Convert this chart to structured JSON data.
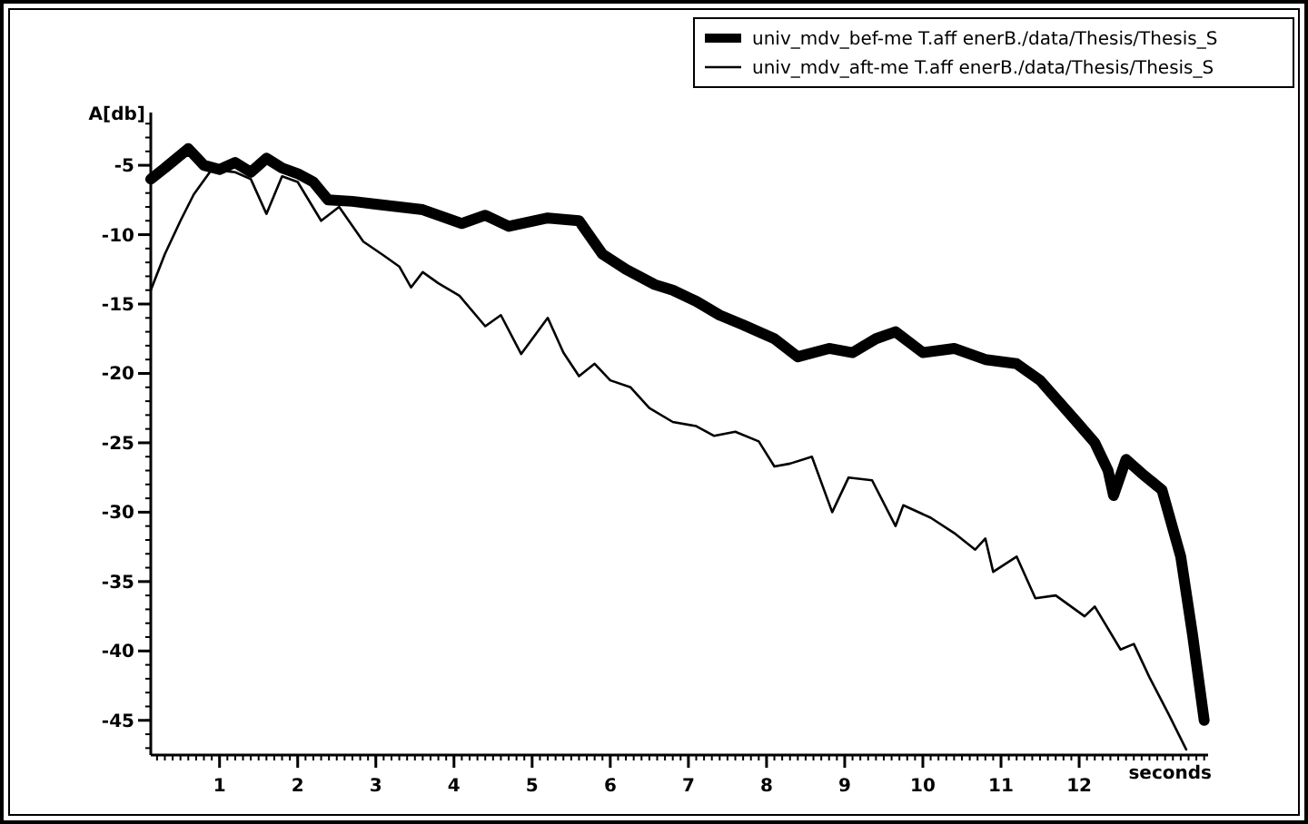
{
  "chart_data": {
    "type": "line",
    "ylabel": "A[db]",
    "xlabel": "seconds",
    "xlim": [
      0.12,
      13.65
    ],
    "ylim": [
      -47.5,
      -1.2
    ],
    "xticks": [
      1,
      2,
      3,
      4,
      5,
      6,
      7,
      8,
      9,
      10,
      11,
      12
    ],
    "yticks": [
      -5,
      -10,
      -15,
      -20,
      -25,
      -30,
      -35,
      -40,
      -45
    ],
    "grid": false,
    "legend": "top right",
    "marker": "none",
    "line_style": "solid",
    "series": [
      {
        "name": "univ_mdv_bef-me T.aff enerB./data/Thesis/Thesis_S",
        "color": "#000000",
        "x": [
          0.12,
          0.3,
          0.6,
          0.8,
          1.0,
          1.2,
          1.4,
          1.6,
          1.8,
          2.0,
          2.2,
          2.39,
          2.7,
          3.0,
          3.3,
          3.6,
          4.1,
          4.4,
          4.7,
          5.2,
          5.6,
          5.9,
          6.2,
          6.57,
          6.8,
          7.1,
          7.4,
          7.7,
          8.1,
          8.4,
          8.8,
          9.1,
          9.4,
          9.65,
          10.0,
          10.4,
          10.8,
          11.2,
          11.5,
          11.97,
          12.2,
          12.37,
          12.44,
          12.6,
          12.8,
          13.06,
          13.3,
          13.45,
          13.6
        ],
        "values": [
          -6.0,
          -5.2,
          -3.8,
          -5.0,
          -5.3,
          -4.8,
          -5.5,
          -4.5,
          -5.2,
          -5.6,
          -6.2,
          -7.5,
          -7.6,
          -7.8,
          -8.0,
          -8.2,
          -9.2,
          -8.6,
          -9.4,
          -8.8,
          -9.0,
          -11.4,
          -12.5,
          -13.6,
          -14.0,
          -14.8,
          -15.8,
          -16.5,
          -17.5,
          -18.8,
          -18.2,
          -18.5,
          -17.5,
          -17.0,
          -18.5,
          -18.2,
          -19.0,
          -19.3,
          -20.5,
          -23.5,
          -25.0,
          -27.0,
          -28.8,
          -26.2,
          -27.2,
          -28.4,
          -33.2,
          -38.8,
          -45.0
        ]
      },
      {
        "name": "univ_mdv_aft-me T.aff enerB./data/Thesis/Thesis_S",
        "color": "#000000",
        "x": [
          0.12,
          0.3,
          0.5,
          0.67,
          0.9,
          1.2,
          1.4,
          1.6,
          1.8,
          2.0,
          2.3,
          2.53,
          2.84,
          3.1,
          3.3,
          3.45,
          3.6,
          3.8,
          4.07,
          4.4,
          4.6,
          4.86,
          5.2,
          5.4,
          5.6,
          5.8,
          6.0,
          6.26,
          6.5,
          6.8,
          7.1,
          7.33,
          7.6,
          7.9,
          8.1,
          8.3,
          8.58,
          8.84,
          9.05,
          9.35,
          9.65,
          9.75,
          10.1,
          10.4,
          10.67,
          10.8,
          10.9,
          11.2,
          11.44,
          11.7,
          12.07,
          12.2,
          12.53,
          12.7,
          12.9,
          13.14,
          13.37
        ],
        "values": [
          -14.0,
          -11.4,
          -9.0,
          -7.1,
          -5.3,
          -5.5,
          -6.0,
          -8.5,
          -5.8,
          -6.2,
          -9.0,
          -8.0,
          -10.5,
          -11.5,
          -12.3,
          -13.8,
          -12.7,
          -13.5,
          -14.4,
          -16.6,
          -15.8,
          -18.6,
          -16.0,
          -18.5,
          -20.2,
          -19.3,
          -20.5,
          -21.0,
          -22.5,
          -23.5,
          -23.8,
          -24.5,
          -24.2,
          -24.9,
          -26.7,
          -26.5,
          -26.0,
          -30.0,
          -27.5,
          -27.7,
          -31.0,
          -29.5,
          -30.4,
          -31.5,
          -32.7,
          -31.9,
          -34.3,
          -33.2,
          -36.2,
          -36.0,
          -37.5,
          -36.8,
          -39.9,
          -39.5,
          -41.9,
          -44.5,
          -47.1
        ]
      }
    ]
  }
}
